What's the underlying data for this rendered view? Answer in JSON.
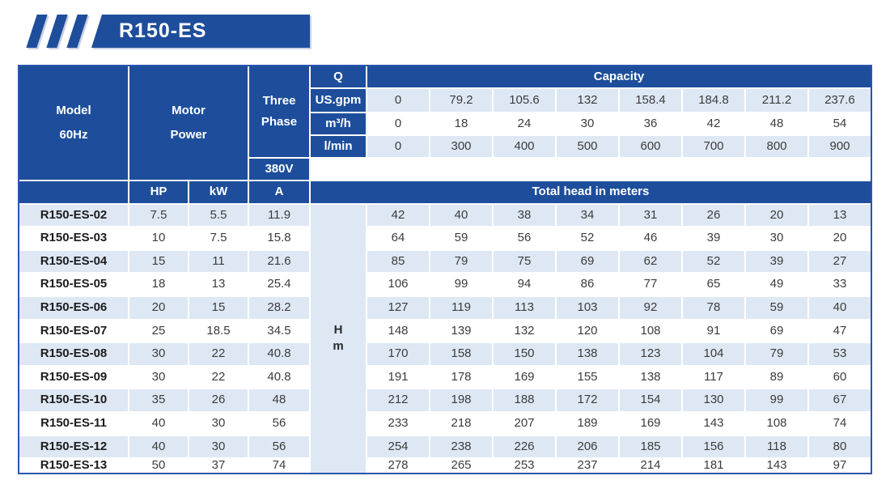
{
  "banner": {
    "title": "R150-ES"
  },
  "colors": {
    "header_blue": "#1e4e9b",
    "border_blue": "#2a55ae",
    "row_shade": "#dee8f4",
    "num_color": "#3c3c3c"
  },
  "table": {
    "header": {
      "model_line1": "Model",
      "model_line2": "60Hz",
      "motor_line1": "Motor",
      "motor_line2": "Power",
      "threephase_line1": "Three",
      "threephase_line2": "Phase",
      "voltage": "380V",
      "q": "Q",
      "capacity": "Capacity",
      "hp": "HP",
      "kw": "kW",
      "a": "A",
      "total_head": "Total head in meters",
      "head_unit_line1": "H",
      "head_unit_line2": "m"
    },
    "capacity_rows": [
      {
        "unit": "US.gpm",
        "shade": true,
        "values": [
          "0",
          "79.2",
          "105.6",
          "132",
          "158.4",
          "184.8",
          "211.2",
          "237.6"
        ]
      },
      {
        "unit": "m³/h",
        "shade": false,
        "values": [
          "0",
          "18",
          "24",
          "30",
          "36",
          "42",
          "48",
          "54"
        ]
      },
      {
        "unit": "l/min",
        "shade": true,
        "values": [
          "0",
          "300",
          "400",
          "500",
          "600",
          "700",
          "800",
          "900"
        ]
      }
    ],
    "rows": [
      {
        "model": "R150-ES-02",
        "hp": "7.5",
        "kw": "5.5",
        "a": "11.9",
        "heads": [
          "42",
          "40",
          "38",
          "34",
          "31",
          "26",
          "20",
          "13"
        ]
      },
      {
        "model": "R150-ES-03",
        "hp": "10",
        "kw": "7.5",
        "a": "15.8",
        "heads": [
          "64",
          "59",
          "56",
          "52",
          "46",
          "39",
          "30",
          "20"
        ]
      },
      {
        "model": "R150-ES-04",
        "hp": "15",
        "kw": "11",
        "a": "21.6",
        "heads": [
          "85",
          "79",
          "75",
          "69",
          "62",
          "52",
          "39",
          "27"
        ]
      },
      {
        "model": "R150-ES-05",
        "hp": "18",
        "kw": "13",
        "a": "25.4",
        "heads": [
          "106",
          "99",
          "94",
          "86",
          "77",
          "65",
          "49",
          "33"
        ]
      },
      {
        "model": "R150-ES-06",
        "hp": "20",
        "kw": "15",
        "a": "28.2",
        "heads": [
          "127",
          "119",
          "113",
          "103",
          "92",
          "78",
          "59",
          "40"
        ]
      },
      {
        "model": "R150-ES-07",
        "hp": "25",
        "kw": "18.5",
        "a": "34.5",
        "heads": [
          "148",
          "139",
          "132",
          "120",
          "108",
          "91",
          "69",
          "47"
        ]
      },
      {
        "model": "R150-ES-08",
        "hp": "30",
        "kw": "22",
        "a": "40.8",
        "heads": [
          "170",
          "158",
          "150",
          "138",
          "123",
          "104",
          "79",
          "53"
        ]
      },
      {
        "model": "R150-ES-09",
        "hp": "30",
        "kw": "22",
        "a": "40.8",
        "heads": [
          "191",
          "178",
          "169",
          "155",
          "138",
          "117",
          "89",
          "60"
        ]
      },
      {
        "model": "R150-ES-10",
        "hp": "35",
        "kw": "26",
        "a": "48",
        "heads": [
          "212",
          "198",
          "188",
          "172",
          "154",
          "130",
          "99",
          "67"
        ]
      },
      {
        "model": "R150-ES-11",
        "hp": "40",
        "kw": "30",
        "a": "56",
        "heads": [
          "233",
          "218",
          "207",
          "189",
          "169",
          "143",
          "108",
          "74"
        ]
      },
      {
        "model": "R150-ES-12",
        "hp": "40",
        "kw": "30",
        "a": "56",
        "heads": [
          "254",
          "238",
          "226",
          "206",
          "185",
          "156",
          "118",
          "80"
        ]
      },
      {
        "model": "R150-ES-13",
        "hp": "50",
        "kw": "37",
        "a": "74",
        "heads": [
          "278",
          "265",
          "253",
          "237",
          "214",
          "181",
          "143",
          "97"
        ]
      }
    ]
  }
}
